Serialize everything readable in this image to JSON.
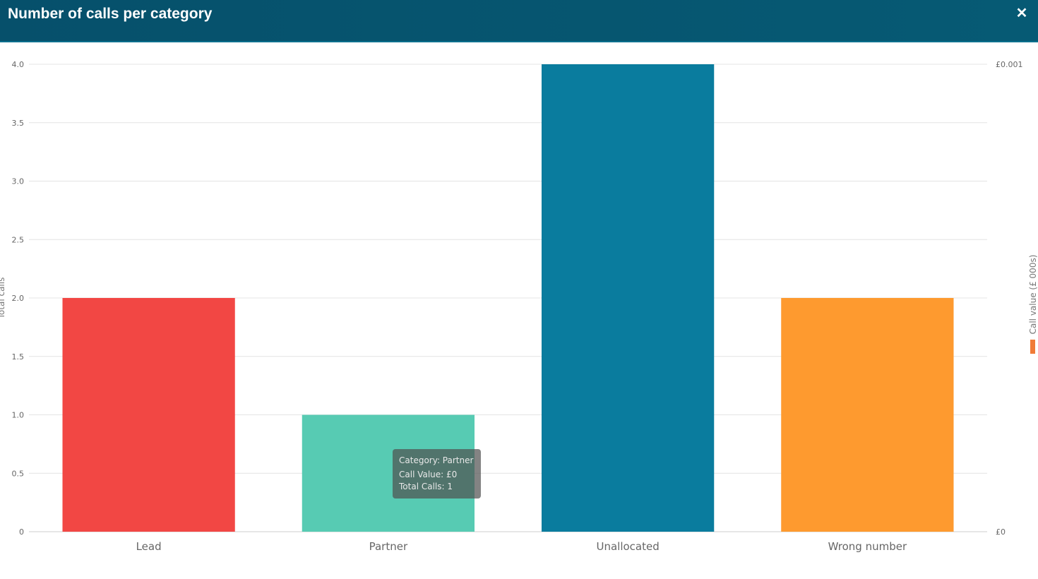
{
  "window": {
    "title": "Number of calls per category",
    "close_icon": "close-icon",
    "close_glyph": "✕"
  },
  "colors": {
    "header": "#06506b",
    "lead": "#f24744",
    "partner": "#57cbb3",
    "unallocated": "#0a7c9e",
    "wrong_number": "#fe9a2f",
    "call_value_legend": "#f07b38"
  },
  "chart_data": {
    "type": "bar",
    "title": "Number of calls per category",
    "categories": [
      "Lead",
      "Partner",
      "Unallocated",
      "Wrong number"
    ],
    "series": [
      {
        "name": "Total calls",
        "values": [
          2,
          1,
          4,
          2
        ],
        "colors": [
          "#f24744",
          "#57cbb3",
          "#0a7c9e",
          "#fe9a2f"
        ]
      },
      {
        "name": "Call value (£ 000s)",
        "values": [
          0,
          0,
          0,
          0
        ],
        "color": "#f07b38"
      }
    ],
    "ylabel": "Total calls",
    "ylim": [
      0,
      4
    ],
    "yticks": [
      "0",
      "0.5",
      "1.0",
      "1.5",
      "2.0",
      "2.5",
      "3.0",
      "3.5",
      "4.0"
    ],
    "y2label": "Call value (£ 000s)",
    "y2ticks": [
      "£0",
      "£0.001"
    ],
    "grid": true,
    "legend_placement": "right",
    "tooltip": {
      "category_line": "Category: Partner",
      "value_line": "Call Value: £0",
      "calls_line": "Total Calls: 1"
    }
  }
}
